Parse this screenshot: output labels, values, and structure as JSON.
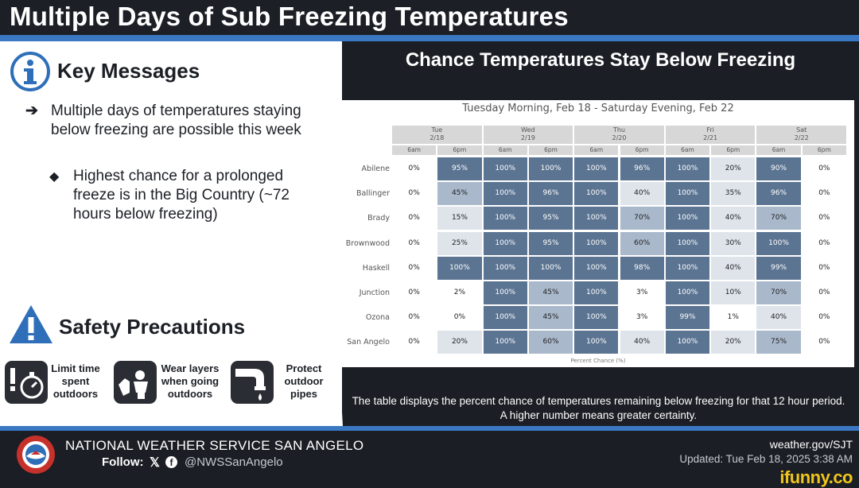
{
  "header": {
    "title": "Multiple Days of Sub Freezing Temperatures"
  },
  "key_messages": {
    "title": "Key Messages",
    "bullet": "Multiple days of temperatures staying below freezing are possible this week",
    "sub_bullet": "Highest chance for a prolonged freeze is in the Big Country (~72 hours below freezing)"
  },
  "safety": {
    "title": "Safety Precautions",
    "tips": [
      {
        "label": "Limit time\nspent\noutdoors",
        "icon": "stopwatch-icon"
      },
      {
        "label": "Wear layers\nwhen going\noutdoors",
        "icon": "clothing-icon"
      },
      {
        "label": "Protect\noutdoor\npipes",
        "icon": "pipe-icon"
      }
    ]
  },
  "chart": {
    "heading": "Chance Temperatures Stay Below Freezing",
    "caption": "The table displays the percent chance of temperatures remaining below freezing for that 12 hour period. A higher number means greater certainty.",
    "colors": {
      "dark": "#5b7492",
      "mid": "#a9b8cb",
      "light": "#dfe4eb",
      "white": "#ffffff"
    }
  },
  "chart_data": {
    "type": "table",
    "title": "Tuesday Morning, Feb 18 - Saturday Evening, Feb 22",
    "footer_label": "Percent Chance (%)",
    "days": [
      {
        "name": "Tue",
        "date": "2/18"
      },
      {
        "name": "Wed",
        "date": "2/19"
      },
      {
        "name": "Thu",
        "date": "2/20"
      },
      {
        "name": "Fri",
        "date": "2/21"
      },
      {
        "name": "Sat",
        "date": "2/22"
      }
    ],
    "periods": [
      "6am",
      "6pm"
    ],
    "rows": [
      {
        "location": "Abilene",
        "values": [
          0,
          95,
          100,
          100,
          100,
          96,
          100,
          20,
          90,
          0
        ]
      },
      {
        "location": "Ballinger",
        "values": [
          0,
          45,
          100,
          96,
          100,
          40,
          100,
          35,
          96,
          0
        ]
      },
      {
        "location": "Brady",
        "values": [
          0,
          15,
          100,
          95,
          100,
          70,
          100,
          40,
          70,
          0
        ]
      },
      {
        "location": "Brownwood",
        "values": [
          0,
          25,
          100,
          95,
          100,
          60,
          100,
          30,
          100,
          0
        ]
      },
      {
        "location": "Haskell",
        "values": [
          0,
          100,
          100,
          100,
          100,
          98,
          100,
          40,
          99,
          0
        ]
      },
      {
        "location": "Junction",
        "values": [
          0,
          2,
          100,
          45,
          100,
          3,
          100,
          10,
          70,
          0
        ]
      },
      {
        "location": "Ozona",
        "values": [
          0,
          0,
          100,
          45,
          100,
          3,
          99,
          1,
          40,
          0
        ]
      },
      {
        "location": "San Angelo",
        "values": [
          0,
          20,
          100,
          60,
          100,
          40,
          100,
          20,
          75,
          0
        ]
      }
    ],
    "unit": "%"
  },
  "footer": {
    "office": "NATIONAL WEATHER SERVICE SAN ANGELO",
    "follow_label": "Follow:",
    "handle": "@NWSSanAngelo",
    "site": "weather.gov/SJT",
    "updated": "Updated: Tue Feb 18, 2025 3:38 AM",
    "watermark": "ifunny.co"
  }
}
